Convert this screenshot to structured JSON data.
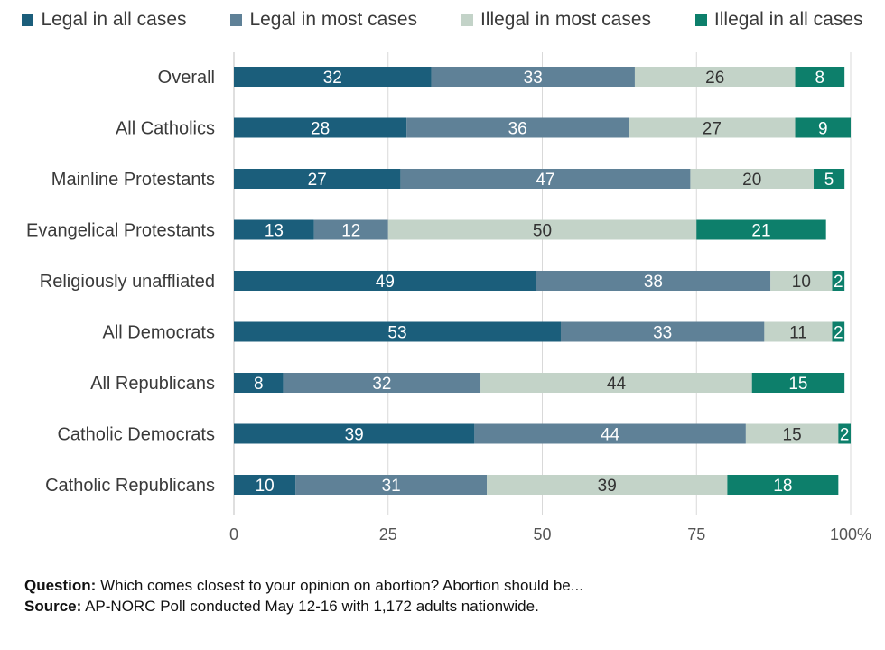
{
  "chart_data": {
    "type": "bar",
    "orientation": "horizontal",
    "stacked": true,
    "categories": [
      "Overall",
      "All Catholics",
      "Mainline Protestants",
      "Evangelical Protestants",
      "Religiously unaffliated",
      "All Democrats",
      "All Republicans",
      "Catholic Democrats",
      "Catholic Republicans"
    ],
    "series": [
      {
        "name": "Legal in all cases",
        "color": "#1b5e7b",
        "text_color": "#ffffff",
        "values": [
          32,
          28,
          27,
          13,
          49,
          53,
          8,
          39,
          10
        ]
      },
      {
        "name": "Legal in most cases",
        "color": "#5f8197",
        "text_color": "#ffffff",
        "values": [
          33,
          36,
          47,
          12,
          38,
          33,
          32,
          44,
          31
        ]
      },
      {
        "name": "Illegal in most cases",
        "color": "#c3d3c8",
        "text_color": "#333333",
        "values": [
          26,
          27,
          20,
          50,
          10,
          11,
          44,
          15,
          39
        ]
      },
      {
        "name": "Illegal in all cases",
        "color": "#0d7f6b",
        "text_color": "#ffffff",
        "values": [
          8,
          9,
          5,
          21,
          2,
          2,
          15,
          2,
          18
        ]
      }
    ],
    "xlim": [
      0,
      100
    ],
    "xticks": [
      "0",
      "25",
      "50",
      "75",
      "100%"
    ],
    "xtick_values": [
      0,
      25,
      50,
      75,
      100
    ],
    "grid": true,
    "legend_position": "top"
  },
  "footer": {
    "question_label": "Question:",
    "question_text": " Which comes closest to your opinion on abortion? Abortion should be...",
    "source_label": "Source:",
    "source_text": " AP-NORC Poll conducted May 12-16 with 1,172 adults nationwide."
  }
}
